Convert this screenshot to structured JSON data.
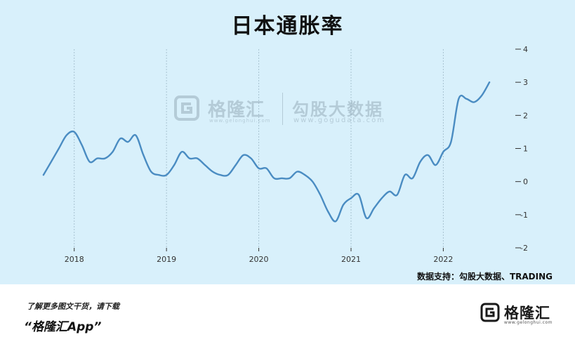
{
  "chart_data": {
    "type": "line",
    "title": "日本通胀率",
    "xlabel": "",
    "ylabel": "",
    "x_tick_labels": [
      "2018",
      "2019",
      "2020",
      "2021",
      "2022"
    ],
    "y_ticks": [
      4,
      3,
      2,
      1,
      0,
      -1,
      -2
    ],
    "ylim": [
      -2,
      4
    ],
    "grid": "vertical",
    "series": [
      {
        "name": "",
        "color": "#4a8cc2",
        "points": [
          [
            "2017-09",
            0.2
          ],
          [
            "2017-10",
            0.6
          ],
          [
            "2017-11",
            1.0
          ],
          [
            "2017-12",
            1.4
          ],
          [
            "2018-01",
            1.5
          ],
          [
            "2018-02",
            1.1
          ],
          [
            "2018-03",
            0.6
          ],
          [
            "2018-04",
            0.7
          ],
          [
            "2018-05",
            0.7
          ],
          [
            "2018-06",
            0.9
          ],
          [
            "2018-07",
            1.3
          ],
          [
            "2018-08",
            1.2
          ],
          [
            "2018-09",
            1.4
          ],
          [
            "2018-10",
            0.8
          ],
          [
            "2018-11",
            0.3
          ],
          [
            "2018-12",
            0.2
          ],
          [
            "2019-01",
            0.2
          ],
          [
            "2019-02",
            0.5
          ],
          [
            "2019-03",
            0.9
          ],
          [
            "2019-04",
            0.7
          ],
          [
            "2019-05",
            0.7
          ],
          [
            "2019-06",
            0.5
          ],
          [
            "2019-07",
            0.3
          ],
          [
            "2019-08",
            0.2
          ],
          [
            "2019-09",
            0.2
          ],
          [
            "2019-10",
            0.5
          ],
          [
            "2019-11",
            0.8
          ],
          [
            "2019-12",
            0.7
          ],
          [
            "2020-01",
            0.4
          ],
          [
            "2020-02",
            0.4
          ],
          [
            "2020-03",
            0.1
          ],
          [
            "2020-04",
            0.1
          ],
          [
            "2020-05",
            0.1
          ],
          [
            "2020-06",
            0.3
          ],
          [
            "2020-07",
            0.2
          ],
          [
            "2020-08",
            0.0
          ],
          [
            "2020-09",
            -0.4
          ],
          [
            "2020-10",
            -0.9
          ],
          [
            "2020-11",
            -1.2
          ],
          [
            "2020-12",
            -0.7
          ],
          [
            "2021-01",
            -0.5
          ],
          [
            "2021-02",
            -0.4
          ],
          [
            "2021-03",
            -1.1
          ],
          [
            "2021-04",
            -0.8
          ],
          [
            "2021-05",
            -0.5
          ],
          [
            "2021-06",
            -0.3
          ],
          [
            "2021-07",
            -0.4
          ],
          [
            "2021-08",
            0.2
          ],
          [
            "2021-09",
            0.1
          ],
          [
            "2021-10",
            0.6
          ],
          [
            "2021-11",
            0.8
          ],
          [
            "2021-12",
            0.5
          ],
          [
            "2022-01",
            0.9
          ],
          [
            "2022-02",
            1.2
          ],
          [
            "2022-03",
            2.5
          ],
          [
            "2022-04",
            2.5
          ],
          [
            "2022-05",
            2.4
          ],
          [
            "2022-06",
            2.6
          ],
          [
            "2022-07",
            3.0
          ]
        ]
      }
    ],
    "colors": {
      "background": "#d8f0fb",
      "line": "#4a8cc2",
      "grid": "#a9c3d1",
      "axis_text": "#333333"
    }
  },
  "source": "数据支持：勾股大数据、TRADING",
  "watermark": {
    "brand": "格隆汇",
    "brand_url": "www.gelonghui.com",
    "partner": "勾股大数据",
    "partner_url": "www.gogudata.com"
  },
  "footer": {
    "tagline": "了解更多图文干货，请下载",
    "app_name": "“格隆汇App”",
    "logo_name": "格隆汇",
    "logo_url": "www.gelonghui.com"
  }
}
